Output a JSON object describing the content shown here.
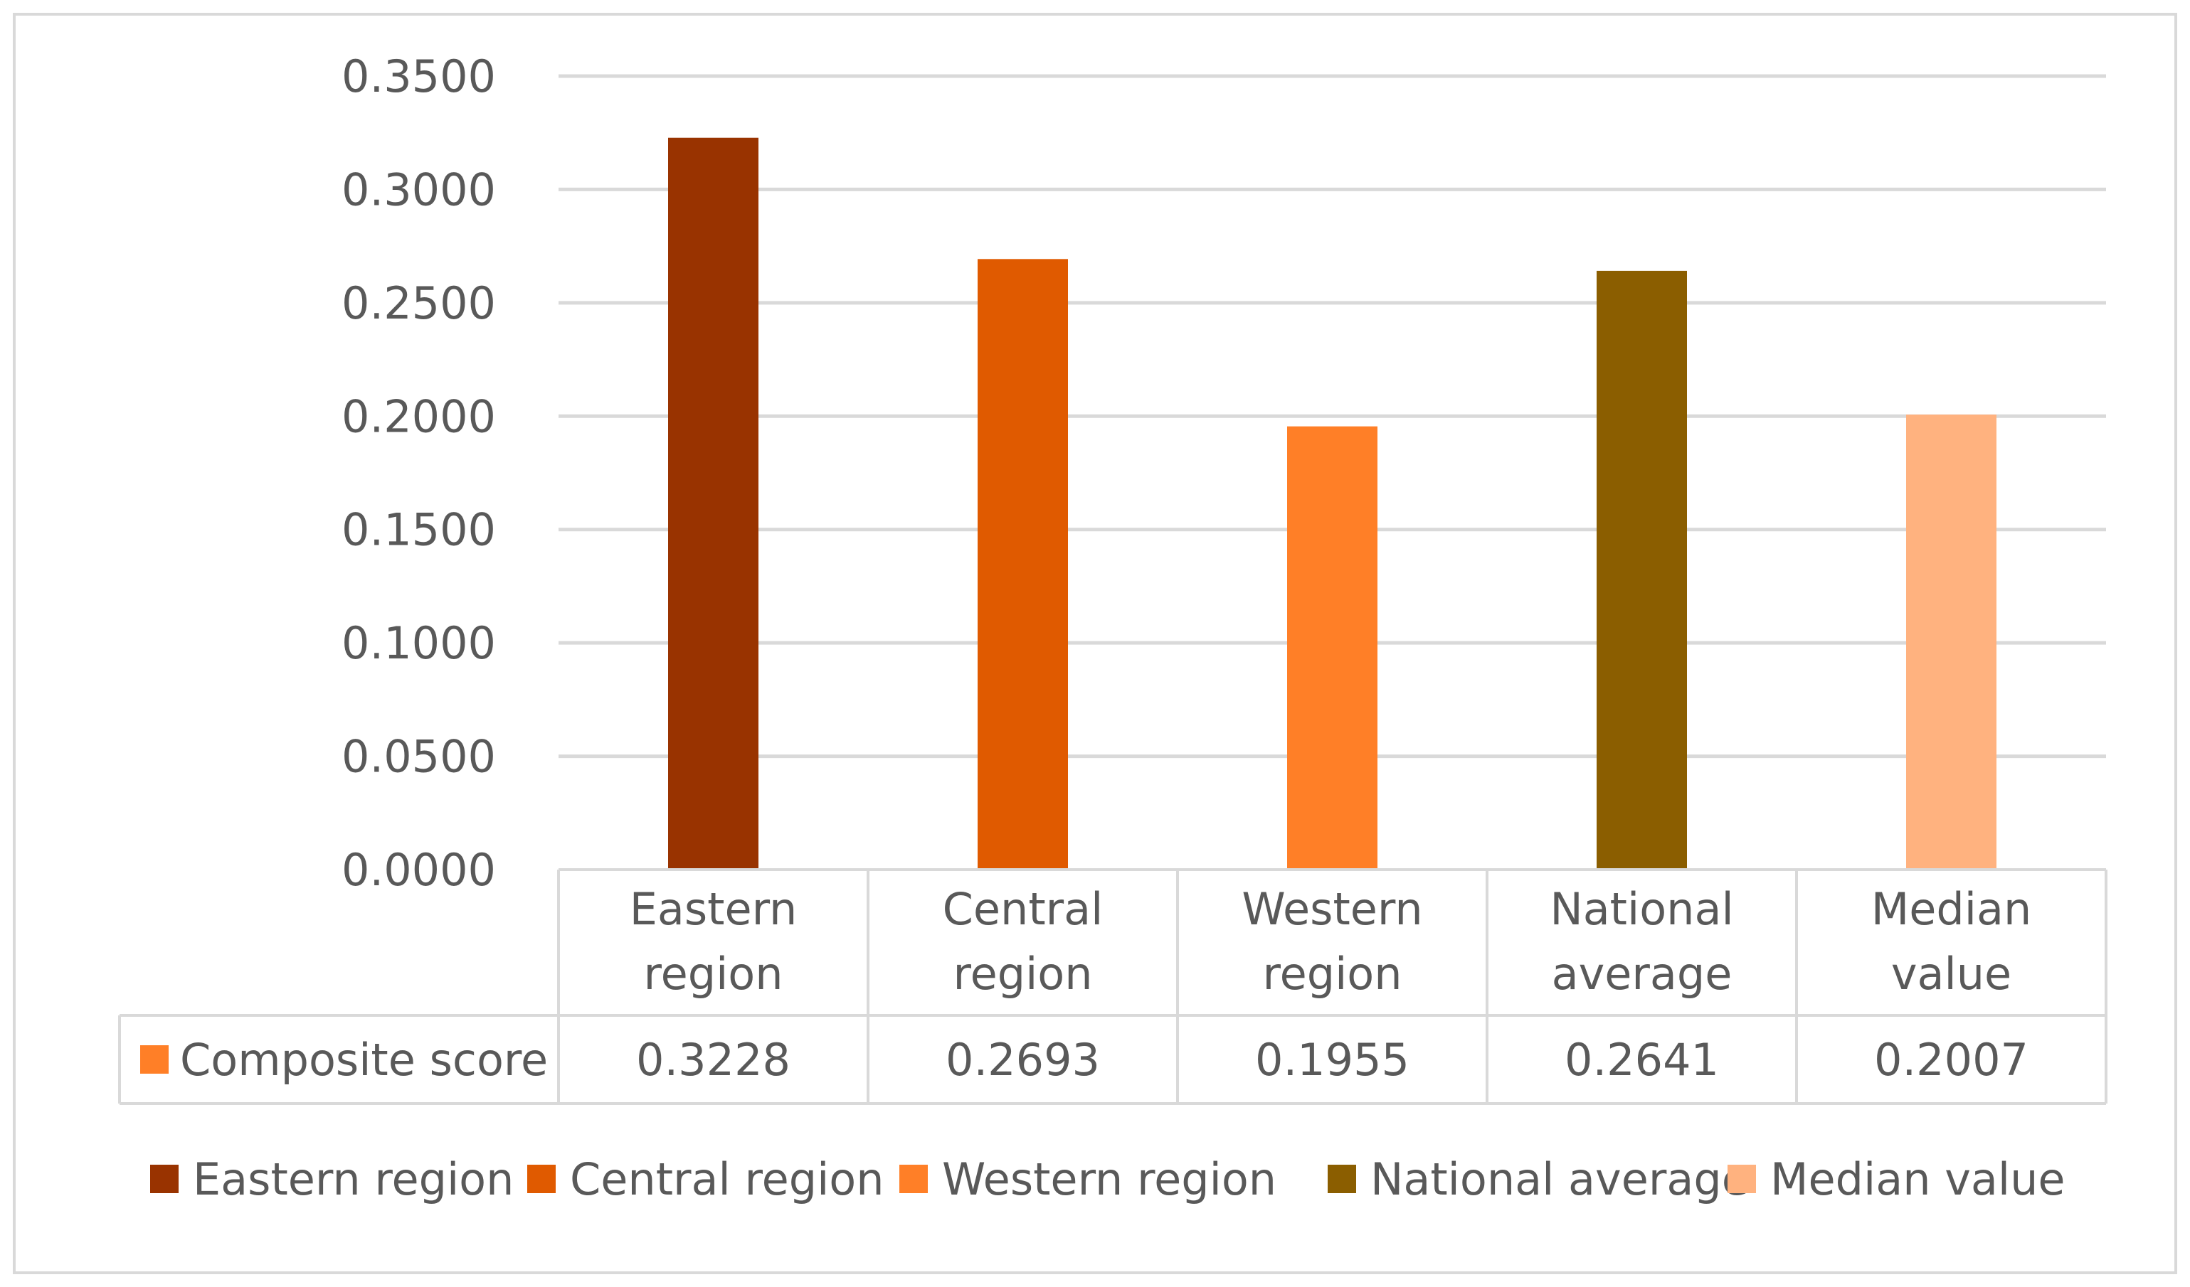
{
  "chart_data": {
    "type": "bar",
    "categories": [
      "Eastern region",
      "Central region",
      "Western region",
      "National average",
      "Median value"
    ],
    "category_lines": [
      [
        "Eastern",
        "region"
      ],
      [
        "Central",
        "region"
      ],
      [
        "Western",
        "region"
      ],
      [
        "National",
        "average"
      ],
      [
        "Median",
        "value"
      ]
    ],
    "series": [
      {
        "name": "Composite score",
        "values": [
          0.3228,
          0.2693,
          0.1955,
          0.2641,
          0.2007
        ]
      }
    ],
    "value_labels": [
      "0.3228",
      "0.2693",
      "0.1955",
      "0.2641",
      "0.2007"
    ],
    "colors": [
      "#993300",
      "#E05A00",
      "#FF7F27",
      "#8B5E00",
      "#FFB27F"
    ],
    "series_key_color": "#FF7F27",
    "ylim": [
      0,
      0.35
    ],
    "yticks": [
      0,
      0.05,
      0.1,
      0.15,
      0.2,
      0.25,
      0.3,
      0.35
    ],
    "ytick_labels": [
      "0.0000",
      "0.0500",
      "0.1000",
      "0.1500",
      "0.2000",
      "0.2500",
      "0.3000",
      "0.3500"
    ],
    "grid": true,
    "data_table": true,
    "legend_position": "bottom",
    "legend": [
      "Eastern region",
      "Central region",
      "Western region",
      "National average",
      "Median value"
    ],
    "title": "",
    "xlabel": "",
    "ylabel": ""
  }
}
